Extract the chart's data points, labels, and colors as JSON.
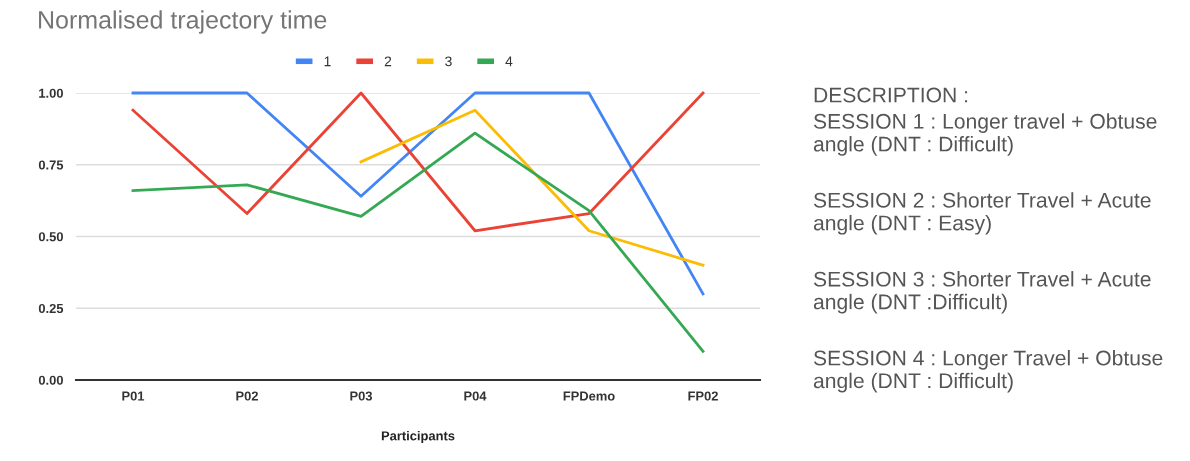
{
  "chart_data": {
    "type": "line",
    "title": "Normalised trajectory time",
    "xlabel": "Participants",
    "categories": [
      "P01",
      "P02",
      "P03",
      "P04",
      "FPDemo",
      "FP02"
    ],
    "series": [
      {
        "name": "1",
        "color": "#4285f4",
        "values": [
          1.0,
          1.0,
          0.64,
          1.0,
          1.0,
          0.3
        ]
      },
      {
        "name": "2",
        "color": "#ea4335",
        "values": [
          0.94,
          0.58,
          1.0,
          0.52,
          0.58,
          1.0
        ]
      },
      {
        "name": "3",
        "color": "#fbbc04",
        "values": [
          null,
          null,
          0.76,
          0.94,
          0.52,
          0.4
        ]
      },
      {
        "name": "4",
        "color": "#34a853",
        "values": [
          0.66,
          0.68,
          0.57,
          0.86,
          0.59,
          0.1
        ]
      }
    ],
    "ylim": [
      0,
      1
    ],
    "yticks": [
      {
        "value": 0,
        "label": "0.00"
      },
      0.25,
      {
        "value": 0.5,
        "label": "0.50"
      },
      0.75,
      {
        "value": 1,
        "label": "1.00"
      }
    ],
    "grid": "y",
    "legend": "top",
    "line_style": "solid",
    "annotations": [
      "DESCRIPTION :",
      "SESSION 1 : Longer travel + Obtuse angle (DNT : Difficult)",
      "SESSION 2 : Shorter Travel + Acute angle (DNT : Easy)",
      "SESSION 3 : Shorter Travel + Acute angle (DNT :Difficult)",
      "SESSION 4 : Longer Travel + Obtuse angle (DNT : Difficult)"
    ]
  }
}
